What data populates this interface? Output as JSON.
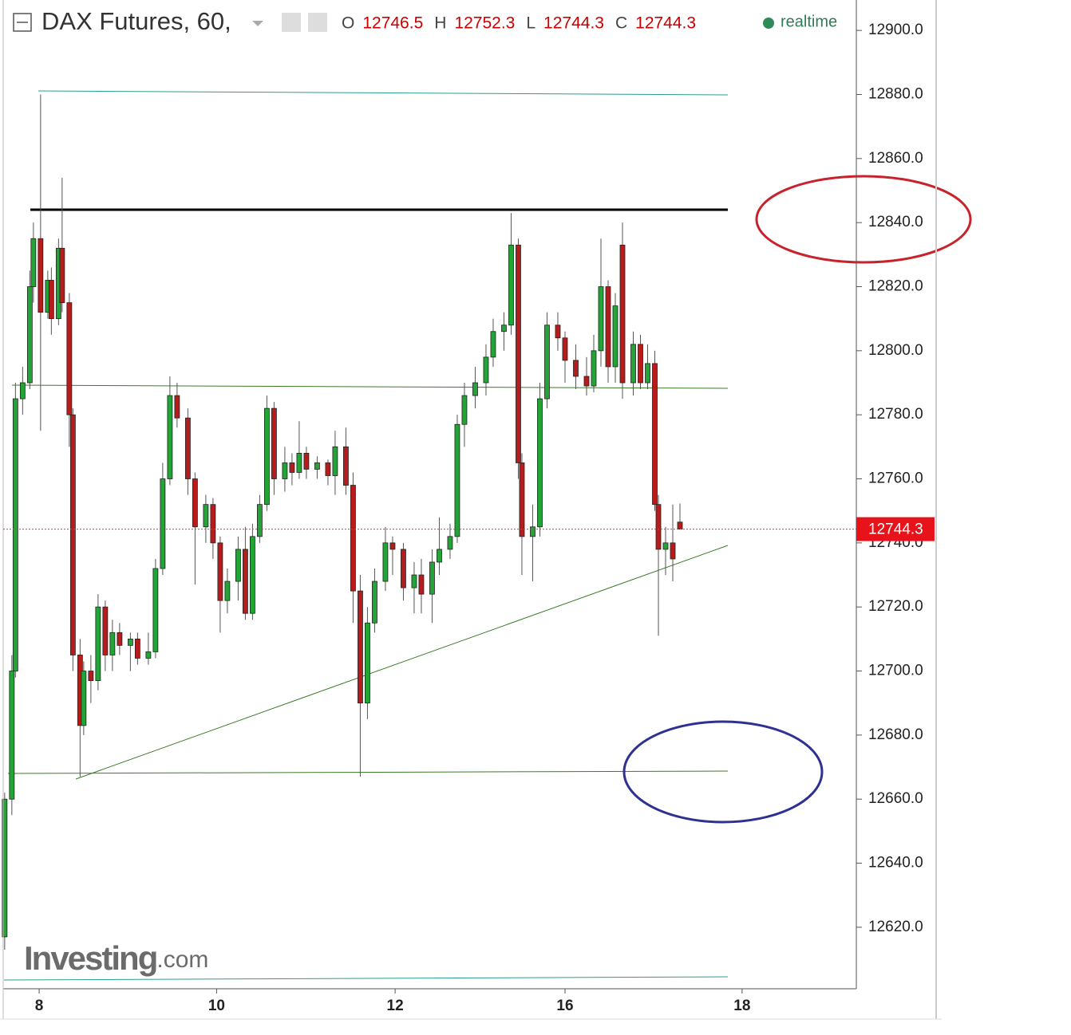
{
  "chart_data": {
    "type": "candlestick",
    "title": "DAX Futures, 60,",
    "header": [
      {
        "key": "O",
        "text": "12746.5"
      },
      {
        "key": "H",
        "text": "12752.3"
      },
      {
        "key": "L",
        "text": "12744.3"
      },
      {
        "key": "C",
        "text": "12744.3"
      }
    ],
    "status": "realtime",
    "last_price": 12744.3,
    "logo": "Investing",
    "logo_suffix": ".com",
    "up_color": "#23a436",
    "down_color": "#b71c1c",
    "x": [
      0,
      2,
      3,
      5,
      7,
      8,
      10,
      12,
      13,
      15,
      16,
      18,
      19,
      21,
      22,
      24,
      26,
      28,
      30,
      32,
      35,
      37,
      40,
      42,
      44,
      46,
      48,
      51,
      53,
      56,
      58,
      60,
      62,
      65,
      67,
      69,
      71,
      73,
      75,
      78,
      80,
      82,
      84,
      87,
      90,
      92,
      95,
      97,
      99,
      101,
      103,
      106,
      108,
      111,
      114,
      116,
      119,
      121,
      124,
      126,
      128,
      131,
      134,
      136,
      139,
      141,
      143,
      144,
      147,
      149,
      151,
      154,
      156,
      159,
      162,
      164,
      166,
      168,
      170,
      172,
      175,
      177,
      179,
      181,
      182,
      184,
      186,
      188
    ],
    "open": [
      12617,
      12660,
      12700,
      12785,
      12790,
      12820,
      12835,
      12812,
      12822,
      12810,
      12832,
      12815,
      12780,
      12705,
      12683,
      12700,
      12697,
      12720,
      12705,
      12712,
      12708,
      12710,
      12704,
      12706,
      12732,
      12760,
      12786,
      12779,
      12760,
      12745,
      12752,
      12740,
      12722,
      12728,
      12738,
      12718,
      12742,
      12752,
      12782,
      12760,
      12765,
      12762,
      12768,
      12763,
      12765,
      12761,
      12770,
      12758,
      12725,
      12690,
      12715,
      12728,
      12740,
      12738,
      12726,
      12730,
      12724,
      12734,
      12738,
      12742,
      12777,
      12786,
      12790,
      12798,
      12806,
      12808,
      12833,
      12765,
      12742,
      12745,
      12785,
      12808,
      12804,
      12797,
      12792,
      12789,
      12800,
      12820,
      12795,
      12833,
      12790,
      12802,
      12790,
      12796,
      12752,
      12738,
      12740,
      12746.5
    ],
    "high": [
      12662,
      12705,
      12790,
      12795,
      12825,
      12840,
      12880,
      12825,
      12826,
      12835,
      12854,
      12818,
      12782,
      12710,
      12703,
      12705,
      12724,
      12722,
      12716,
      12715,
      12712,
      12712,
      12712,
      12735,
      12765,
      12792,
      12790,
      12782,
      12762,
      12755,
      12754,
      12742,
      12732,
      12742,
      12745,
      12746,
      12755,
      12786,
      12784,
      12770,
      12768,
      12778,
      12770,
      12767,
      12766,
      12775,
      12776,
      12762,
      12730,
      12720,
      12732,
      12745,
      12742,
      12740,
      12734,
      12735,
      12738,
      12748,
      12746,
      12780,
      12790,
      12795,
      12802,
      12810,
      12812,
      12843,
      12835,
      12768,
      12752,
      12790,
      12812,
      12812,
      12806,
      12802,
      12798,
      12805,
      12835,
      12822,
      12818,
      12840,
      12806,
      12805,
      12802,
      12800,
      12755,
      12745,
      12752,
      12752.3
    ],
    "low": [
      12613,
      12655,
      12698,
      12780,
      12788,
      12815,
      12775,
      12810,
      12805,
      12808,
      12812,
      12770,
      12700,
      12667,
      12680,
      12690,
      12694,
      12700,
      12700,
      12705,
      12700,
      12702,
      12702,
      12704,
      12730,
      12758,
      12776,
      12755,
      12727,
      12740,
      12735,
      12712,
      12718,
      12722,
      12716,
      12716,
      12740,
      12750,
      12755,
      12756,
      12758,
      12760,
      12760,
      12760,
      12758,
      12755,
      12755,
      12715,
      12667,
      12685,
      12712,
      12725,
      12730,
      12722,
      12718,
      12718,
      12715,
      12730,
      12735,
      12740,
      12770,
      12782,
      12786,
      12795,
      12800,
      12805,
      12760,
      12730,
      12728,
      12742,
      12782,
      12800,
      12790,
      12788,
      12786,
      12787,
      12795,
      12790,
      12790,
      12785,
      12786,
      12788,
      12788,
      12750,
      12711,
      12730,
      12728,
      12744.3
    ],
    "close": [
      12660,
      12700,
      12785,
      12790,
      12820,
      12835,
      12812,
      12822,
      12810,
      12832,
      12815,
      12780,
      12705,
      12683,
      12700,
      12697,
      12720,
      12705,
      12712,
      12708,
      12710,
      12704,
      12706,
      12732,
      12760,
      12786,
      12779,
      12760,
      12745,
      12752,
      12740,
      12722,
      12728,
      12738,
      12718,
      12742,
      12752,
      12782,
      12760,
      12765,
      12762,
      12768,
      12763,
      12765,
      12761,
      12770,
      12758,
      12725,
      12690,
      12715,
      12728,
      12740,
      12738,
      12726,
      12730,
      12724,
      12734,
      12738,
      12742,
      12777,
      12786,
      12790,
      12798,
      12806,
      12808,
      12833,
      12765,
      12742,
      12745,
      12785,
      12808,
      12804,
      12797,
      12792,
      12789,
      12800,
      12820,
      12795,
      12814,
      12790,
      12802,
      12790,
      12796,
      12752,
      12738,
      12740,
      12735,
      12744.3
    ],
    "xlim": [
      -1.3,
      237.1
    ],
    "xticks": [
      {
        "value": 9.6,
        "label": "8"
      },
      {
        "value": 59,
        "label": "10"
      },
      {
        "value": 108.7,
        "label": "12"
      },
      {
        "value": 156,
        "label": "16"
      },
      {
        "value": 205.3,
        "label": "18"
      }
    ],
    "ylim": [
      12600.8,
      12909.5
    ],
    "yticks": [
      {
        "value": 12620,
        "label": "12620.0"
      },
      {
        "value": 12640,
        "label": "12640.0"
      },
      {
        "value": 12660,
        "label": "12660.0"
      },
      {
        "value": 12680,
        "label": "12680.0"
      },
      {
        "value": 12700,
        "label": "12700.0"
      },
      {
        "value": 12720,
        "label": "12720.0"
      },
      {
        "value": 12740,
        "label": "12740.0"
      },
      {
        "value": 12760,
        "label": "12760.0"
      },
      {
        "value": 12780,
        "label": "12780.0"
      },
      {
        "value": 12800,
        "label": "12800.0"
      },
      {
        "value": 12820,
        "label": "12820.0"
      },
      {
        "value": 12840,
        "label": "12840.0"
      },
      {
        "value": 12860,
        "label": "12860.0"
      },
      {
        "value": 12880,
        "label": "12880.0"
      },
      {
        "value": 12900,
        "label": "12900.0"
      }
    ]
  }
}
